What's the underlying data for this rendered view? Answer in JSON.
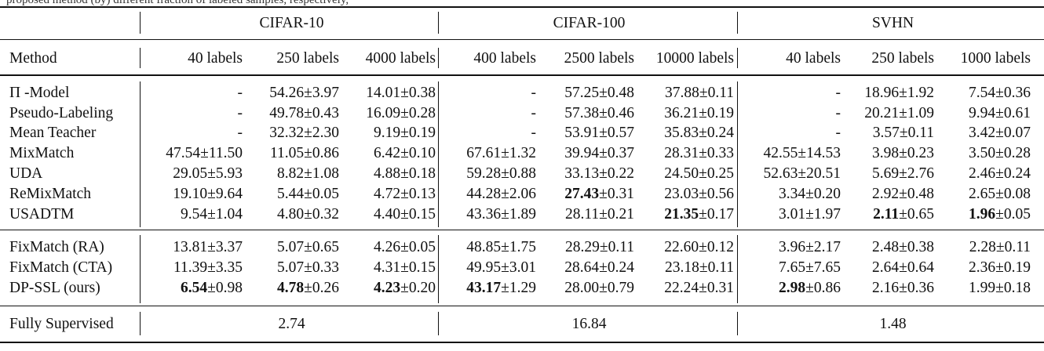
{
  "caption": "proposed method (by) different fraction of labeled samples, respectively,",
  "datasets": [
    "CIFAR-10",
    "CIFAR-100",
    "SVHN"
  ],
  "method_header": "Method",
  "label_headers": [
    "40 labels",
    "250 labels",
    "4000 labels",
    "400 labels",
    "2500 labels",
    "10000 labels",
    "40 labels",
    "250 labels",
    "1000 labels"
  ],
  "baselines": [
    {
      "name": "Π -Model",
      "cells": [
        {
          "m": "-"
        },
        {
          "m": "54.26",
          "e": "3.97"
        },
        {
          "m": "14.01",
          "e": "0.38"
        },
        {
          "m": "-"
        },
        {
          "m": "57.25",
          "e": "0.48"
        },
        {
          "m": "37.88",
          "e": "0.11"
        },
        {
          "m": "-"
        },
        {
          "m": "18.96",
          "e": "1.92"
        },
        {
          "m": "7.54",
          "e": "0.36"
        }
      ]
    },
    {
      "name": "Pseudo-Labeling",
      "cells": [
        {
          "m": "-"
        },
        {
          "m": "49.78",
          "e": "0.43"
        },
        {
          "m": "16.09",
          "e": "0.28"
        },
        {
          "m": "-"
        },
        {
          "m": "57.38",
          "e": "0.46"
        },
        {
          "m": "36.21",
          "e": "0.19"
        },
        {
          "m": "-"
        },
        {
          "m": "20.21",
          "e": "1.09"
        },
        {
          "m": "9.94",
          "e": "0.61"
        }
      ]
    },
    {
      "name": "Mean Teacher",
      "cells": [
        {
          "m": "-"
        },
        {
          "m": "32.32",
          "e": "2.30"
        },
        {
          "m": "9.19",
          "e": "0.19"
        },
        {
          "m": "-"
        },
        {
          "m": "53.91",
          "e": "0.57"
        },
        {
          "m": "35.83",
          "e": "0.24"
        },
        {
          "m": "-"
        },
        {
          "m": "3.57",
          "e": "0.11"
        },
        {
          "m": "3.42",
          "e": "0.07"
        }
      ]
    },
    {
      "name": "MixMatch",
      "cells": [
        {
          "m": "47.54",
          "e": "11.50"
        },
        {
          "m": "11.05",
          "e": "0.86"
        },
        {
          "m": "6.42",
          "e": "0.10"
        },
        {
          "m": "67.61",
          "e": "1.32"
        },
        {
          "m": "39.94",
          "e": "0.37"
        },
        {
          "m": "28.31",
          "e": "0.33"
        },
        {
          "m": "42.55",
          "e": "14.53"
        },
        {
          "m": "3.98",
          "e": "0.23"
        },
        {
          "m": "3.50",
          "e": "0.28"
        }
      ]
    },
    {
      "name": "UDA",
      "cells": [
        {
          "m": "29.05",
          "e": "5.93"
        },
        {
          "m": "8.82",
          "e": "1.08"
        },
        {
          "m": "4.88",
          "e": "0.18"
        },
        {
          "m": "59.28",
          "e": "0.88"
        },
        {
          "m": "33.13",
          "e": "0.22"
        },
        {
          "m": "24.50",
          "e": "0.25"
        },
        {
          "m": "52.63",
          "e": "20.51"
        },
        {
          "m": "5.69",
          "e": "2.76"
        },
        {
          "m": "2.46",
          "e": "0.24"
        }
      ]
    },
    {
      "name": "ReMixMatch",
      "cells": [
        {
          "m": "19.10",
          "e": "9.64"
        },
        {
          "m": "5.44",
          "e": "0.05"
        },
        {
          "m": "4.72",
          "e": "0.13"
        },
        {
          "m": "44.28",
          "e": "2.06"
        },
        {
          "m": "27.43",
          "e": "0.31",
          "b": true
        },
        {
          "m": "23.03",
          "e": "0.56"
        },
        {
          "m": "3.34",
          "e": "0.20"
        },
        {
          "m": "2.92",
          "e": "0.48"
        },
        {
          "m": "2.65",
          "e": "0.08"
        }
      ]
    },
    {
      "name": "USADTM",
      "cells": [
        {
          "m": "9.54",
          "e": "1.04"
        },
        {
          "m": "4.80",
          "e": "0.32"
        },
        {
          "m": "4.40",
          "e": "0.15"
        },
        {
          "m": "43.36",
          "e": "1.89"
        },
        {
          "m": "28.11",
          "e": "0.21"
        },
        {
          "m": "21.35",
          "e": "0.17",
          "b": true
        },
        {
          "m": "3.01",
          "e": "1.97"
        },
        {
          "m": "2.11",
          "e": "0.65",
          "b": true
        },
        {
          "m": "1.96",
          "e": "0.05",
          "b": true
        }
      ]
    }
  ],
  "fixmatch": [
    {
      "name": "FixMatch (RA)",
      "cells": [
        {
          "m": "13.81",
          "e": "3.37"
        },
        {
          "m": "5.07",
          "e": "0.65"
        },
        {
          "m": "4.26",
          "e": "0.05"
        },
        {
          "m": "48.85",
          "e": "1.75"
        },
        {
          "m": "28.29",
          "e": "0.11"
        },
        {
          "m": "22.60",
          "e": "0.12"
        },
        {
          "m": "3.96",
          "e": "2.17"
        },
        {
          "m": "2.48",
          "e": "0.38"
        },
        {
          "m": "2.28",
          "e": "0.11"
        }
      ]
    },
    {
      "name": "FixMatch (CTA)",
      "cells": [
        {
          "m": "11.39",
          "e": "3.35"
        },
        {
          "m": "5.07",
          "e": "0.33"
        },
        {
          "m": "4.31",
          "e": "0.15"
        },
        {
          "m": "49.95",
          "e": "3.01"
        },
        {
          "m": "28.64",
          "e": "0.24"
        },
        {
          "m": "23.18",
          "e": "0.11"
        },
        {
          "m": "7.65",
          "e": "7.65"
        },
        {
          "m": "2.64",
          "e": "0.64"
        },
        {
          "m": "2.36",
          "e": "0.19"
        }
      ]
    },
    {
      "name": "DP-SSL (ours)",
      "cells": [
        {
          "m": "6.54",
          "e": "0.98",
          "b": true
        },
        {
          "m": "4.78",
          "e": "0.26",
          "b": true
        },
        {
          "m": "4.23",
          "e": "0.20",
          "b": true
        },
        {
          "m": "43.17",
          "e": "1.29",
          "b": true
        },
        {
          "m": "28.00",
          "e": "0.79"
        },
        {
          "m": "22.24",
          "e": "0.31"
        },
        {
          "m": "2.98",
          "e": "0.86",
          "b": true
        },
        {
          "m": "2.16",
          "e": "0.36"
        },
        {
          "m": "1.99",
          "e": "0.18"
        }
      ]
    }
  ],
  "supervised": {
    "name": "Fully Supervised",
    "values": [
      "2.74",
      "16.84",
      "1.48"
    ]
  },
  "pm": "±"
}
